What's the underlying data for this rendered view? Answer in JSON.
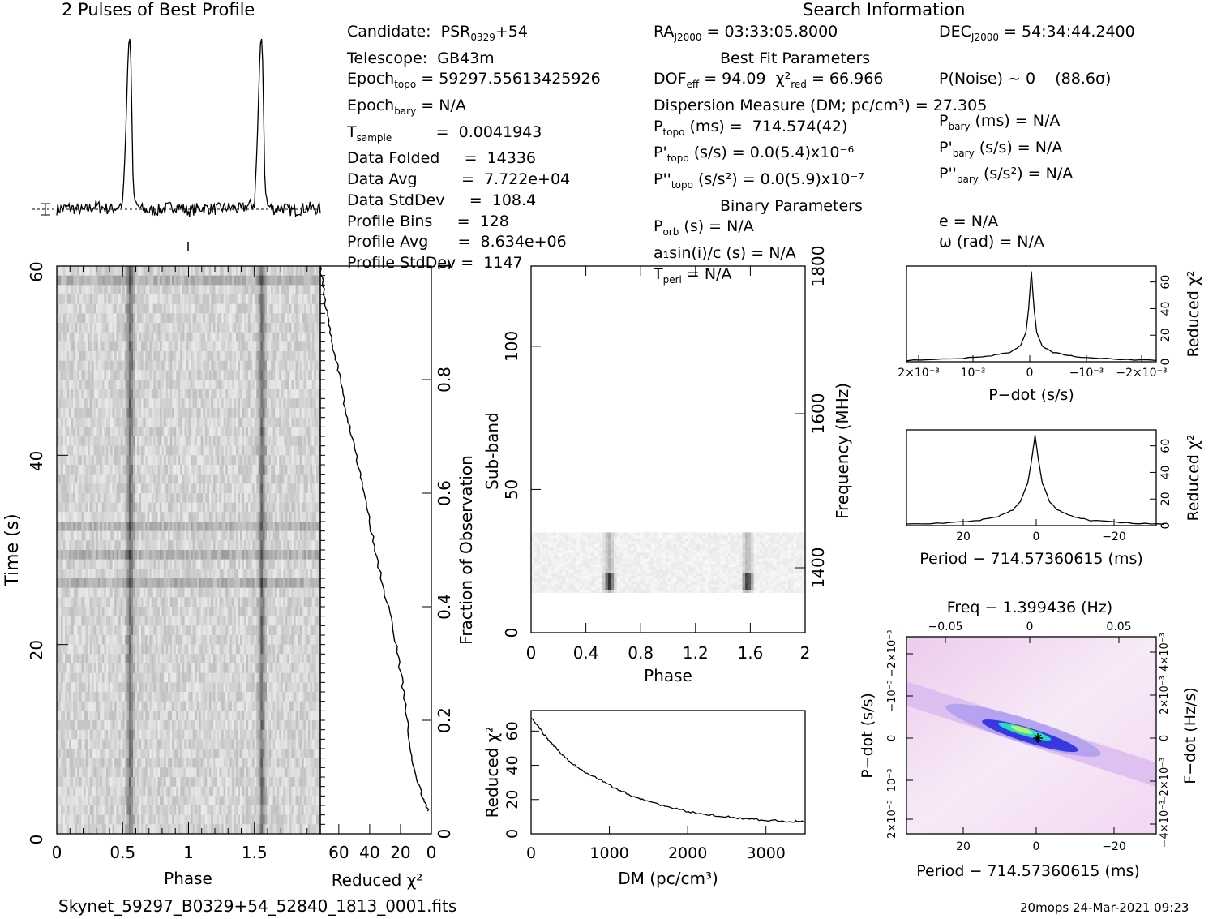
{
  "profile_title": "2 Pulses of Best Profile",
  "search_title": "Search Information",
  "candidate_info": {
    "col1": [
      "Candidate:  PSR_0329+54",
      "Telescope:  GB43m",
      "Epoch_topo = 59297.55613425926",
      "Epoch_bary = N/A",
      "T_sample         =  0.0041943",
      "Data Folded     =  14336",
      "Data Avg         =  7.722e+04",
      "Data StdDev     =  108.4",
      "Profile Bins     =  128",
      "Profile Avg      =  8.634e+06",
      "Profile StdDev =  1147"
    ],
    "col2": [
      "RA_J2000 = 03:33:05.8000",
      "Best Fit Parameters",
      "DOF_eff = 94.09  χ²_red = 66.966",
      "Dispersion Measure (DM; pc/cm³) = 27.305",
      "P_topo (ms) =  714.574(42)",
      "P'_topo (s/s) = 0.0(5.4)x10⁻⁶",
      "P''_topo (s/s²) = 0.0(5.9)x10⁻⁷",
      "Binary Parameters",
      "P_orb (s) = N/A",
      "a₁sin(i)/c (s) = N/A",
      "T_peri = N/A"
    ],
    "col3": [
      "DEC_J2000 = 54:34:44.2400",
      "",
      "P(Noise) ~ 0    (88.6σ)",
      "",
      "P_bary (ms) = N/A",
      "P'_bary (s/s) = N/A",
      "P''_bary (s/s²) = N/A",
      "",
      "e = N/A",
      "ω (rad) = N/A",
      ""
    ]
  },
  "footer": {
    "filename": "Skynet_59297_B0329+54_52840_1813_0001.fits",
    "stamp": "20mops 24-Mar-2021 09:23"
  },
  "colors": {
    "ink": "#000000",
    "grey_map": "#808080",
    "ppdot_low": "#f4dcf4",
    "ppdot_mid": "#3030e0",
    "ppdot_high": "#20e0c0"
  },
  "chart_data": [
    {
      "type": "line",
      "name": "profile",
      "title": "2 Pulses of Best Profile",
      "x": [
        0.0,
        0.1,
        0.2,
        0.3,
        0.4,
        0.45,
        0.5,
        0.52,
        0.54,
        0.55,
        0.56,
        0.57,
        0.58,
        0.6,
        0.65,
        0.7,
        0.8,
        0.9,
        1.0,
        1.1,
        1.2,
        1.3,
        1.4,
        1.45,
        1.5,
        1.52,
        1.54,
        1.55,
        1.56,
        1.57,
        1.58,
        1.6,
        1.65,
        1.7,
        1.8,
        1.9,
        2.0
      ],
      "y": [
        0.0,
        0.01,
        -0.01,
        0.02,
        0.0,
        0.01,
        0.03,
        0.35,
        0.85,
        1.0,
        0.95,
        0.55,
        0.12,
        0.02,
        0.0,
        -0.01,
        0.0,
        0.02,
        -0.01,
        0.01,
        0.0,
        0.01,
        0.0,
        0.02,
        0.03,
        0.35,
        0.85,
        1.0,
        0.95,
        0.55,
        0.12,
        0.02,
        0.0,
        0.01,
        -0.01,
        0.01,
        0.0
      ],
      "xlim": [
        0,
        2
      ]
    },
    {
      "type": "heatmap",
      "name": "time-phase",
      "xlabel": "Phase",
      "ylabel": "Time (s)",
      "xlim": [
        0,
        2
      ],
      "ylim": [
        0,
        60
      ],
      "xticks": [
        "0",
        "0.5",
        "1",
        "1.5"
      ],
      "yticks": [
        "0",
        "20",
        "40",
        "60"
      ],
      "pulse_phases": [
        0.55,
        1.55
      ]
    },
    {
      "type": "line",
      "name": "reduced-chi2-vs-fraction",
      "xlabel": "Reduced χ²",
      "ylabel": "Fraction of Observation",
      "xticks": [
        "60",
        "40",
        "20",
        "0"
      ],
      "yticks": [
        "0",
        "0.2",
        "0.4",
        "0.6",
        "0.8",
        "1"
      ],
      "x": [
        2,
        5,
        10,
        14,
        18,
        22,
        28,
        35,
        40,
        45,
        50,
        55,
        60,
        64,
        68,
        70,
        72
      ],
      "y": [
        0.04,
        0.06,
        0.1,
        0.16,
        0.25,
        0.32,
        0.4,
        0.48,
        0.55,
        0.62,
        0.68,
        0.74,
        0.81,
        0.86,
        0.92,
        0.96,
        1.0
      ],
      "xlim": [
        72,
        0
      ],
      "ylim": [
        0,
        1
      ]
    },
    {
      "type": "heatmap",
      "name": "subband-phase",
      "xlabel": "Phase",
      "ylabel": "Sub-band",
      "y2label": "Frequency (MHz)",
      "xticks": [
        "0",
        "0.4",
        "0.8",
        "1.2",
        "1.6",
        "2"
      ],
      "yticks": [
        "0",
        "50",
        "100"
      ],
      "y2ticks": [
        "1400",
        "1600",
        "1800"
      ],
      "xlim": [
        0,
        2
      ],
      "ylim": [
        0,
        128
      ],
      "data_band": [
        14,
        35
      ],
      "pulse_phases": [
        0.56,
        1.57
      ]
    },
    {
      "type": "line",
      "name": "dm-chi2",
      "xlabel": "DM (pc/cm³)",
      "ylabel": "Reduced χ²",
      "xticks": [
        "0",
        "1000",
        "2000",
        "3000"
      ],
      "yticks": [
        "0",
        "20",
        "40",
        "60"
      ],
      "x": [
        0,
        100,
        200,
        300,
        400,
        500,
        700,
        900,
        1100,
        1300,
        1500,
        1800,
        2100,
        2400,
        2700,
        3000,
        3300,
        3500
      ],
      "y": [
        68,
        62,
        56,
        51,
        46,
        42,
        36,
        31,
        26,
        22,
        19,
        15,
        12,
        10.5,
        9,
        8,
        7.3,
        7
      ],
      "xlim": [
        0,
        3500
      ],
      "ylim": [
        0,
        72
      ]
    },
    {
      "type": "line",
      "name": "pdot-chi2",
      "xlabel": "P−dot (s/s)",
      "ylabel": "Reduced χ²",
      "xticks": [
        "2×10⁻³",
        "10⁻³",
        "0",
        "−10⁻³",
        "−2×10⁻³"
      ],
      "yticks": [
        "0",
        "20",
        "40",
        "60"
      ],
      "x": [
        0.0023,
        0.0015,
        0.0008,
        0.0004,
        0.0002,
        0.0001,
        5e-05,
        0.0,
        -5e-05,
        -0.0001,
        -0.0002,
        -0.0004,
        -0.0008,
        -0.0015,
        -0.0023
      ],
      "y": [
        1,
        2,
        4,
        7,
        12,
        22,
        40,
        68,
        40,
        22,
        12,
        7,
        4,
        2,
        1
      ],
      "xlim": [
        0.0023,
        -0.0023
      ],
      "ylim": [
        0,
        72
      ]
    },
    {
      "type": "line",
      "name": "period-chi2",
      "xlabel": "Period − 714.57360615 (ms)",
      "ylabel": "Reduced χ²",
      "xticks": [
        "20",
        "0",
        "−20"
      ],
      "yticks": [
        "0",
        "20",
        "40",
        "60"
      ],
      "x": [
        35,
        25,
        15,
        10,
        6,
        4,
        2,
        1,
        0,
        -1,
        -2,
        -4,
        -6,
        -10,
        -15,
        -25,
        -35
      ],
      "y": [
        1,
        2,
        4,
        7,
        12,
        18,
        32,
        48,
        68,
        48,
        32,
        18,
        12,
        7,
        4,
        2,
        1
      ],
      "xlim": [
        35,
        -33
      ],
      "ylim": [
        0,
        72
      ]
    },
    {
      "type": "heatmap",
      "name": "period-pdot",
      "title": "Freq − 1.399436 (Hz)",
      "xlabel": "Period − 714.57360615 (ms)",
      "ylabel": "P−dot (s/s)",
      "y2label": "F−dot (Hz/s)",
      "xticks": [
        "20",
        "0",
        "−20"
      ],
      "x2ticks": [
        "−0.05",
        "0",
        "0.05"
      ],
      "yticks": [
        "2×10⁻³",
        "10⁻³",
        "0",
        "−10⁻³",
        "−2×10⁻³"
      ],
      "y2ticks": [
        "−4×10⁻³",
        "−2×10⁻³",
        "0",
        "2×10⁻³",
        "4×10⁻³"
      ],
      "xlim": [
        35,
        -33
      ],
      "ylim": [
        0.0023,
        -0.0023
      ]
    }
  ]
}
